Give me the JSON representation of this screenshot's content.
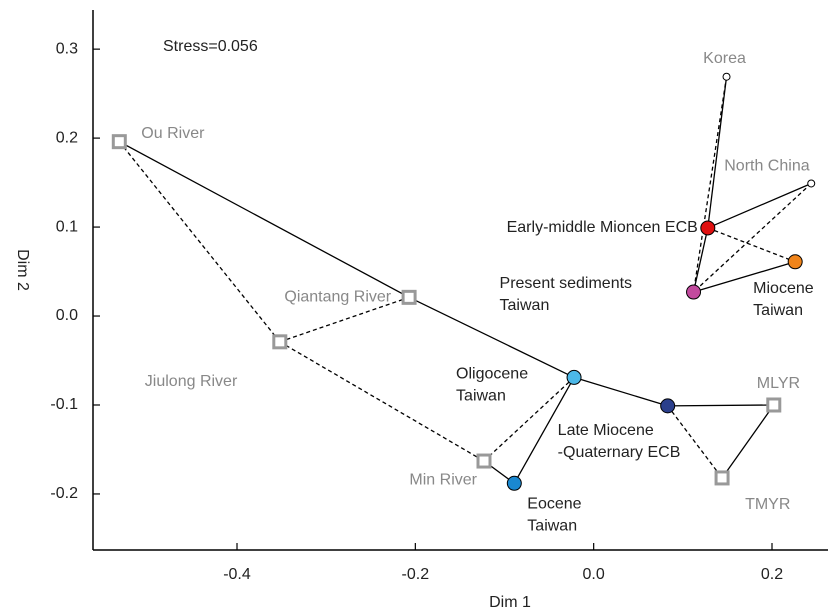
{
  "chart_data": {
    "type": "scatter",
    "annotation": "Stress=0.056",
    "xlabel": "Dim 1",
    "ylabel": "Dim 2",
    "xlim": [
      -0.5615,
      0.2628
    ],
    "ylim": [
      -0.263,
      0.344
    ],
    "xticks": [
      -0.4,
      -0.2,
      {
        "value": 0,
        "label": "0.0"
      },
      0.2
    ],
    "yticks": [
      0.3,
      0.2,
      0.1,
      {
        "value": 0,
        "label": "0.0"
      },
      -0.1,
      -0.2
    ],
    "series": [
      {
        "name": "Ou River",
        "x": [
          -0.532
        ],
        "values": [
          0.196
        ],
        "color": "#999999",
        "marker": "square"
      },
      {
        "name": "Qiantang River",
        "x": [
          -0.207
        ],
        "values": [
          0.021
        ],
        "color": "#999999",
        "marker": "square"
      },
      {
        "name": "Jiulong River",
        "x": [
          -0.352
        ],
        "values": [
          -0.029
        ],
        "color": "#999999",
        "marker": "square"
      },
      {
        "name": "Min River",
        "x": [
          -0.123
        ],
        "values": [
          -0.163
        ],
        "color": "#999999",
        "marker": "square"
      },
      {
        "name": "MLYR",
        "x": [
          0.202
        ],
        "values": [
          -0.1
        ],
        "color": "#999999",
        "marker": "square"
      },
      {
        "name": "TMYR",
        "x": [
          0.144
        ],
        "values": [
          -0.182
        ],
        "color": "#999999",
        "marker": "square"
      },
      {
        "name": "Korea",
        "x": [
          0.149
        ],
        "values": [
          0.269
        ],
        "color": "#ffffff",
        "marker": "small"
      },
      {
        "name": "North China",
        "x": [
          0.244
        ],
        "values": [
          0.149
        ],
        "color": "#ffffff",
        "marker": "small"
      },
      {
        "name": "Early-middle Mioncen ECB",
        "x": [
          0.128
        ],
        "values": [
          0.099
        ],
        "color": "#e01010",
        "marker": "circle"
      },
      {
        "name": "Present sediments\nTaiwan",
        "x": [
          0.112
        ],
        "values": [
          0.027
        ],
        "color": "#c24a9e",
        "marker": "circle"
      },
      {
        "name": "Miocene\nTaiwan",
        "x": [
          0.226
        ],
        "values": [
          0.061
        ],
        "color": "#f0841a",
        "marker": "circle"
      },
      {
        "name": "Oligocene\nTaiwan",
        "x": [
          -0.022
        ],
        "values": [
          -0.069
        ],
        "color": "#4cb8e8",
        "marker": "circle"
      },
      {
        "name": "Late Miocene\n-Quaternary ECB",
        "x": [
          0.083
        ],
        "values": [
          -0.101
        ],
        "color": "#2b3f8c",
        "marker": "circle"
      },
      {
        "name": "Eocene\nTaiwan",
        "x": [
          -0.089
        ],
        "values": [
          -0.188
        ],
        "color": "#1a88d0",
        "marker": "circle"
      }
    ]
  }
}
